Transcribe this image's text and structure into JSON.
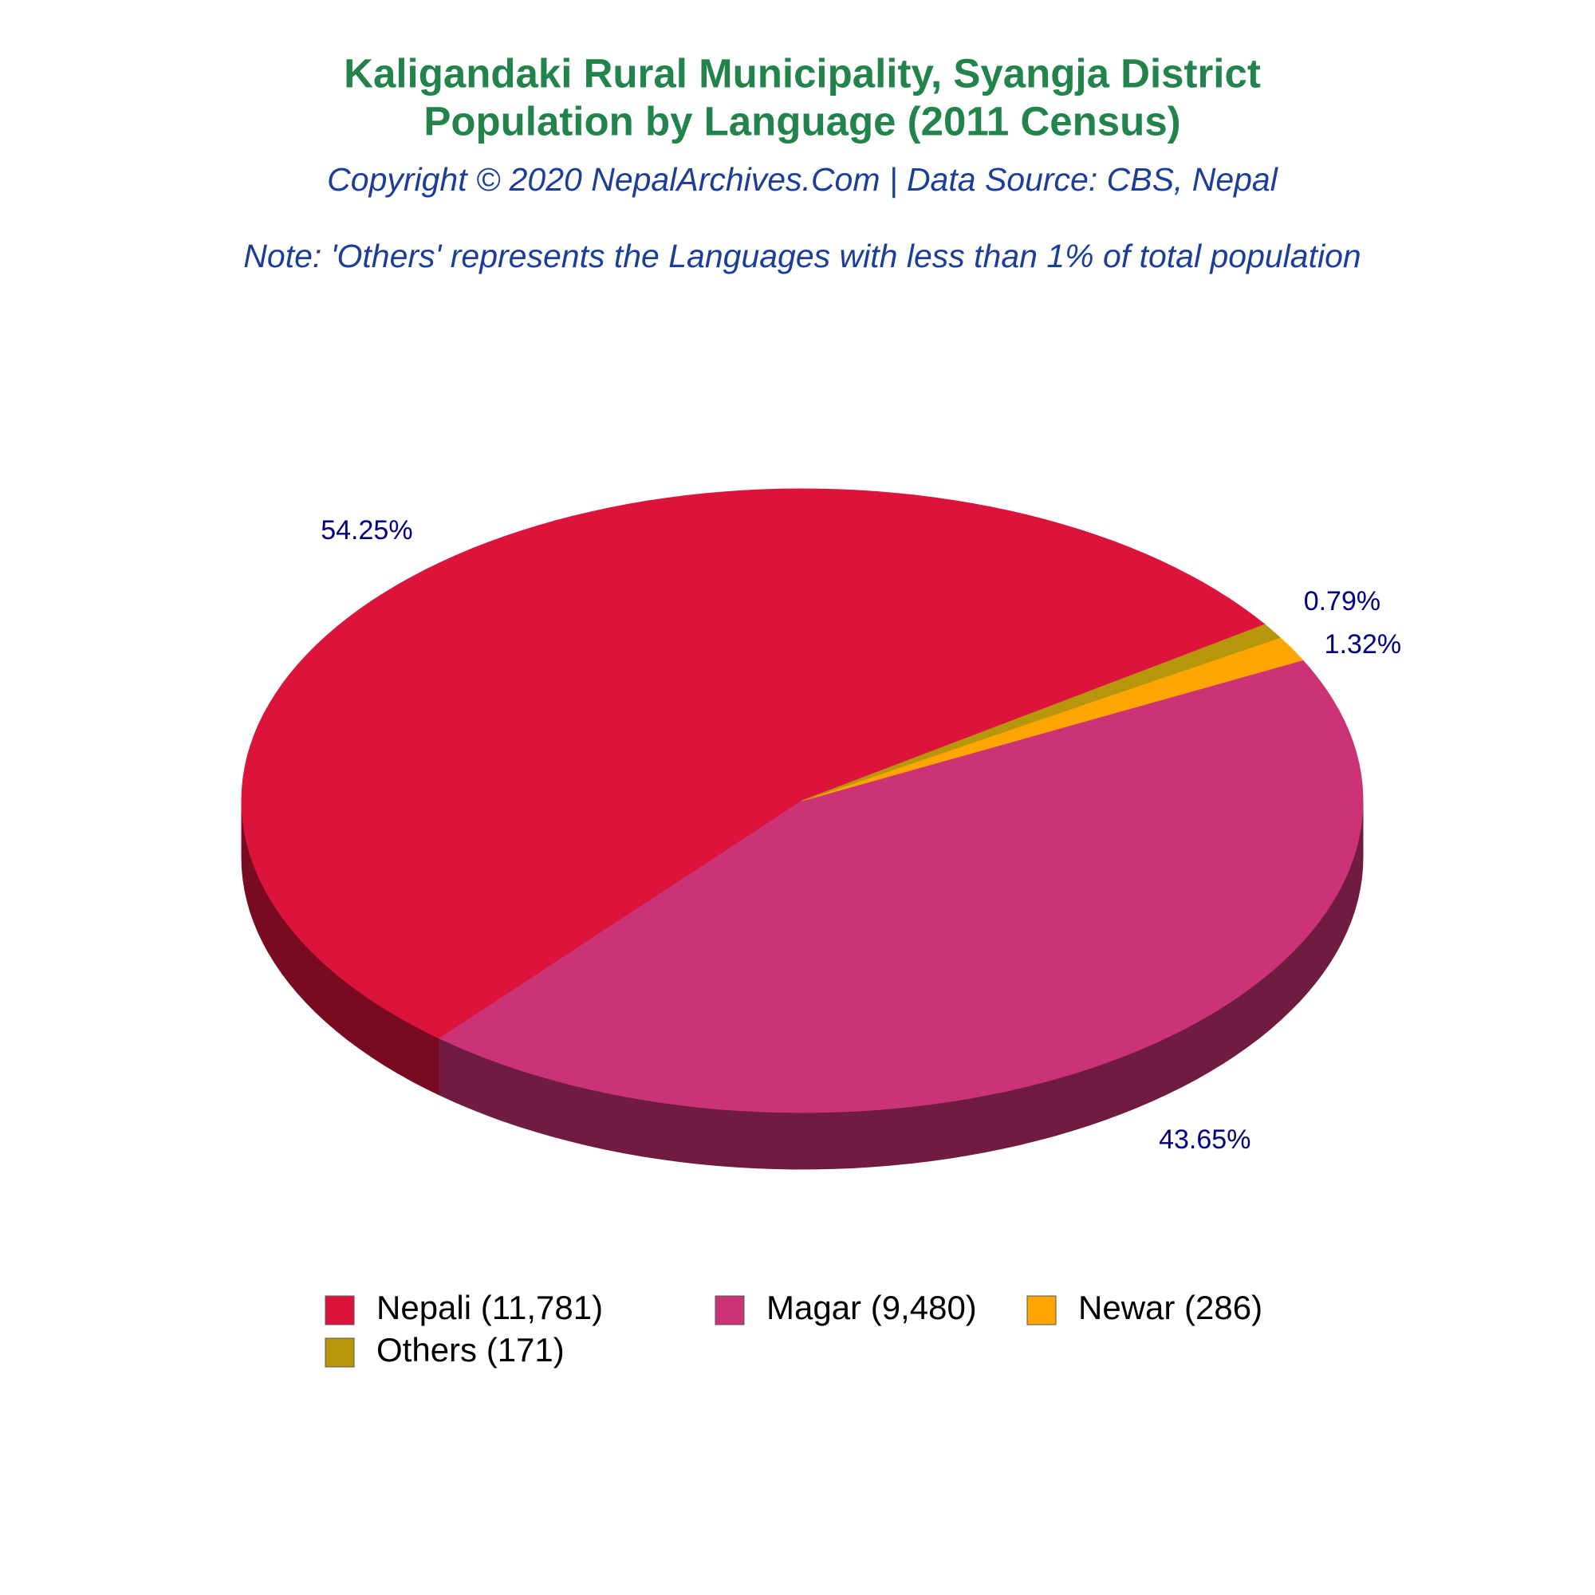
{
  "chart_data": {
    "type": "pie3d",
    "title": [
      "Kaligandaki Rural Municipality, Syangja District",
      "Population by Language (2011 Census)"
    ],
    "subtitle": "Copyright © 2020 NepalArchives.Com | Data Source: CBS, Nepal",
    "note": "Note: 'Others' represents the Languages with less than 1% of total population",
    "series": [
      {
        "name": "Nepali (11,781)",
        "color": "#dc143c",
        "values": [
          54.25
        ],
        "value_labels": [
          "54.25%"
        ]
      },
      {
        "name": "Magar (9,480)",
        "color": "#cc3377",
        "values": [
          43.65
        ],
        "value_labels": [
          "43.65%"
        ]
      },
      {
        "name": "Newar (286)",
        "color": "#ffa500",
        "values": [
          1.32
        ],
        "value_labels": [
          "1.32%"
        ]
      },
      {
        "name": "Others (171)",
        "color": "#b8960c",
        "values": [
          0.79
        ],
        "value_labels": [
          "0.79%"
        ]
      }
    ]
  }
}
